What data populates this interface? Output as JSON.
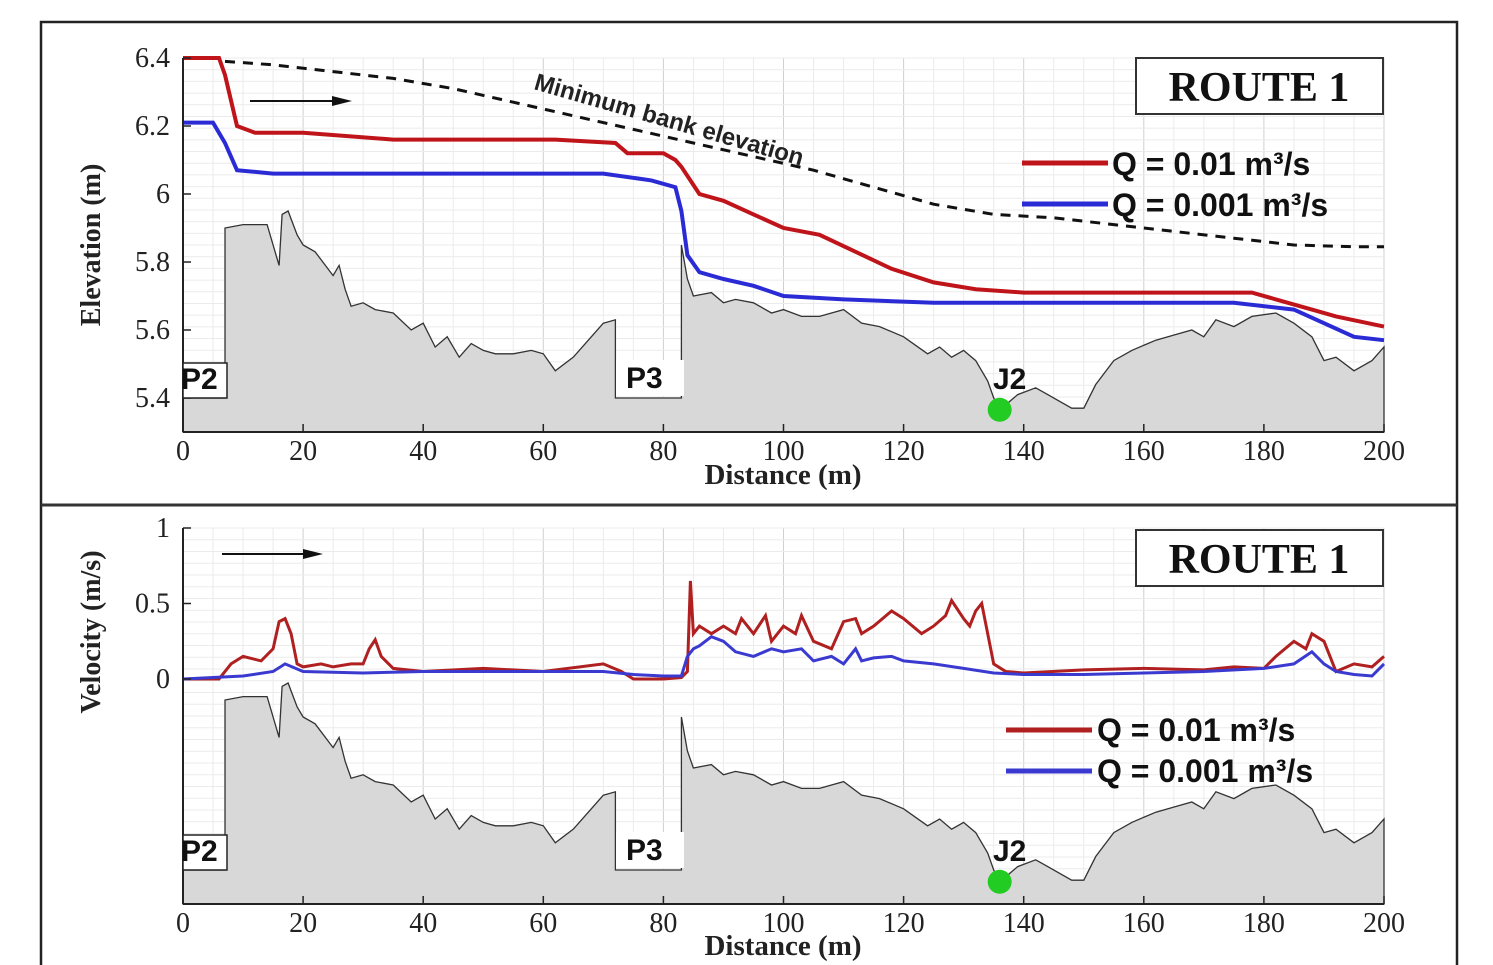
{
  "chart_data": [
    {
      "type": "line",
      "title": "ROUTE 1",
      "xlabel": "Distance (m)",
      "ylabel": "Elevation (m)",
      "xlim": [
        0,
        200
      ],
      "ylim": [
        5.35,
        6.42
      ],
      "xticks": [
        "0",
        "20",
        "40",
        "60",
        "80",
        "100",
        "120",
        "140",
        "160",
        "180",
        "200"
      ],
      "yticks": [
        "5.4",
        "5.6",
        "5.8",
        "6",
        "6.2",
        "6.4"
      ],
      "ytick_values": [
        5.4,
        5.6,
        5.8,
        6.0,
        6.2,
        6.4
      ],
      "grid": true,
      "legend_position": "top-right",
      "annotation": "Minimum bank elevation",
      "point_labels": [
        "P2",
        "P3",
        "J2"
      ],
      "series": [
        {
          "name": "Q = 0.01 m³/s",
          "color": "#c0141b",
          "x": [
            0,
            6,
            7,
            9,
            12,
            20,
            35,
            50,
            62,
            72,
            74,
            80,
            82,
            83,
            86,
            90,
            95,
            100,
            106,
            112,
            118,
            125,
            132,
            140,
            150,
            160,
            170,
            178,
            182,
            188,
            192,
            200
          ],
          "y": [
            6.4,
            6.4,
            6.35,
            6.2,
            6.18,
            6.18,
            6.16,
            6.16,
            6.16,
            6.15,
            6.12,
            6.12,
            6.1,
            6.08,
            6.0,
            5.98,
            5.94,
            5.9,
            5.88,
            5.83,
            5.78,
            5.74,
            5.72,
            5.71,
            5.71,
            5.71,
            5.71,
            5.71,
            5.69,
            5.66,
            5.64,
            5.61
          ]
        },
        {
          "name": "Q = 0.001 m³/s",
          "color": "#2b2bd6",
          "x": [
            0,
            5,
            7,
            9,
            15,
            30,
            45,
            60,
            70,
            78,
            82,
            83,
            84,
            86,
            90,
            95,
            100,
            110,
            125,
            140,
            160,
            175,
            185,
            190,
            195,
            200
          ],
          "y": [
            6.21,
            6.21,
            6.15,
            6.07,
            6.06,
            6.06,
            6.06,
            6.06,
            6.06,
            6.04,
            6.02,
            5.95,
            5.82,
            5.77,
            5.75,
            5.73,
            5.7,
            5.69,
            5.68,
            5.68,
            5.68,
            5.68,
            5.66,
            5.62,
            5.58,
            5.57
          ]
        },
        {
          "name": "Minimum bank elevation",
          "color": "#111111",
          "style": "dashed",
          "x": [
            7,
            15,
            25,
            35,
            45,
            55,
            65,
            75,
            85,
            95,
            105,
            115,
            125,
            135,
            145,
            155,
            165,
            175,
            185,
            195,
            200
          ],
          "y": [
            6.39,
            6.38,
            6.36,
            6.34,
            6.31,
            6.27,
            6.23,
            6.19,
            6.15,
            6.11,
            6.07,
            6.02,
            5.97,
            5.94,
            5.93,
            5.91,
            5.89,
            5.87,
            5.85,
            5.845,
            5.845
          ]
        },
        {
          "name": "Bed profile",
          "color": "#d8d8d8",
          "x": [
            0,
            7,
            7,
            10,
            14,
            16,
            16.5,
            17.5,
            19,
            20,
            22,
            25,
            26,
            27,
            28,
            30,
            32,
            35,
            38,
            40,
            42,
            44,
            46,
            48,
            50,
            52,
            55,
            58,
            60,
            62,
            65,
            68,
            70,
            72,
            72,
            73,
            73,
            83,
            83,
            84,
            85,
            88,
            90,
            92,
            95,
            98,
            100,
            103,
            106,
            110,
            113,
            116,
            120,
            124,
            126,
            128,
            130,
            132,
            134,
            135,
            136,
            137,
            139,
            142,
            144,
            148,
            150,
            152,
            155,
            158,
            162,
            166,
            168,
            170,
            172,
            175,
            178,
            182,
            185,
            188,
            190,
            192,
            195,
            198,
            200,
            200
          ],
          "y": [
            5.4,
            5.4,
            5.9,
            5.91,
            5.91,
            5.79,
            5.94,
            5.95,
            5.88,
            5.85,
            5.83,
            5.76,
            5.79,
            5.72,
            5.67,
            5.68,
            5.66,
            5.65,
            5.6,
            5.62,
            5.55,
            5.58,
            5.52,
            5.56,
            5.54,
            5.53,
            5.53,
            5.54,
            5.53,
            5.48,
            5.52,
            5.58,
            5.62,
            5.63,
            5.4,
            5.4,
            5.4,
            5.4,
            5.85,
            5.75,
            5.7,
            5.71,
            5.68,
            5.69,
            5.68,
            5.65,
            5.66,
            5.64,
            5.64,
            5.66,
            5.62,
            5.61,
            5.58,
            5.53,
            5.55,
            5.52,
            5.54,
            5.51,
            5.45,
            5.4,
            5.37,
            5.38,
            5.41,
            5.43,
            5.41,
            5.37,
            5.37,
            5.44,
            5.51,
            5.54,
            5.57,
            5.59,
            5.6,
            5.58,
            5.63,
            5.61,
            5.64,
            5.65,
            5.62,
            5.58,
            5.51,
            5.52,
            5.48,
            5.51,
            5.55,
            5.35
          ]
        }
      ],
      "bed_fill": "#d8d8d8",
      "j2_marker": {
        "x": 136,
        "y": 5.38,
        "color": "#22cc22"
      }
    },
    {
      "type": "line",
      "title": "ROUTE 1",
      "xlabel": "Distance (m)",
      "ylabel": "Velocity (m/s)",
      "xlim": [
        0,
        200
      ],
      "ylim": [
        -1.5,
        1.0
      ],
      "xticks": [
        "0",
        "20",
        "40",
        "60",
        "80",
        "100",
        "120",
        "140",
        "160",
        "180",
        "200"
      ],
      "yticks": [
        "0",
        "0.5",
        "1"
      ],
      "ytick_values": [
        0,
        0.5,
        1.0
      ],
      "grid": true,
      "legend_position": "right",
      "point_labels": [
        "P2",
        "P3",
        "J2"
      ],
      "series": [
        {
          "name": "Q = 0.01 m³/s",
          "color": "#b02020",
          "x": [
            0,
            6,
            8,
            10,
            13,
            15,
            16,
            17,
            18,
            19,
            20,
            23,
            25,
            28,
            30,
            31,
            32,
            33,
            35,
            40,
            50,
            60,
            70,
            73,
            75,
            80,
            83,
            84,
            84.5,
            85,
            86,
            88,
            90,
            92,
            93,
            95,
            97,
            98,
            100,
            102,
            103,
            105,
            108,
            110,
            112,
            113,
            115,
            118,
            120,
            123,
            125,
            127,
            128,
            130,
            131,
            132,
            133,
            134,
            135,
            137,
            140,
            150,
            160,
            170,
            175,
            180,
            182,
            185,
            187,
            188,
            190,
            192,
            195,
            198,
            200
          ],
          "y": [
            0.0,
            0.0,
            0.1,
            0.15,
            0.12,
            0.2,
            0.38,
            0.4,
            0.3,
            0.1,
            0.08,
            0.1,
            0.08,
            0.1,
            0.1,
            0.2,
            0.26,
            0.15,
            0.07,
            0.05,
            0.07,
            0.05,
            0.1,
            0.05,
            0.0,
            0.0,
            0.01,
            0.05,
            0.65,
            0.3,
            0.35,
            0.3,
            0.35,
            0.3,
            0.4,
            0.3,
            0.42,
            0.25,
            0.35,
            0.3,
            0.42,
            0.25,
            0.2,
            0.38,
            0.4,
            0.3,
            0.35,
            0.45,
            0.4,
            0.3,
            0.35,
            0.42,
            0.52,
            0.4,
            0.35,
            0.45,
            0.5,
            0.3,
            0.1,
            0.05,
            0.04,
            0.06,
            0.07,
            0.06,
            0.08,
            0.07,
            0.15,
            0.25,
            0.2,
            0.3,
            0.25,
            0.05,
            0.1,
            0.08,
            0.15
          ]
        },
        {
          "name": "Q = 0.001 m³/s",
          "color": "#3a3ad0",
          "x": [
            0,
            10,
            15,
            17,
            20,
            30,
            40,
            50,
            60,
            70,
            75,
            80,
            83,
            84,
            85,
            86,
            88,
            90,
            92,
            95,
            98,
            100,
            103,
            105,
            108,
            110,
            112,
            113,
            115,
            118,
            120,
            125,
            130,
            135,
            140,
            150,
            160,
            170,
            180,
            185,
            188,
            190,
            192,
            195,
            198,
            200
          ],
          "y": [
            0.0,
            0.02,
            0.05,
            0.1,
            0.05,
            0.04,
            0.05,
            0.05,
            0.05,
            0.05,
            0.03,
            0.02,
            0.02,
            0.15,
            0.2,
            0.22,
            0.28,
            0.25,
            0.18,
            0.15,
            0.2,
            0.18,
            0.2,
            0.12,
            0.15,
            0.1,
            0.2,
            0.12,
            0.14,
            0.15,
            0.12,
            0.1,
            0.07,
            0.04,
            0.03,
            0.03,
            0.04,
            0.05,
            0.07,
            0.1,
            0.18,
            0.1,
            0.05,
            0.03,
            0.02,
            0.1
          ]
        }
      ]
    }
  ]
}
